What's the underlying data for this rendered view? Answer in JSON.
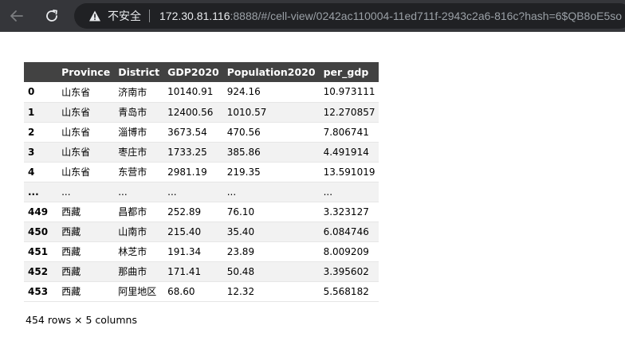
{
  "browser": {
    "security_label": "不安全",
    "url_host": "172.30.81.116",
    "url_rest": ":8888/#/cell-view/0242ac110004-11ed711f-2943c2a6-816c?hash=6$QB8oE5so"
  },
  "table": {
    "columns": [
      "",
      "Province",
      "District",
      "GDP2020",
      "Population2020",
      "per_gdp"
    ],
    "rows": [
      {
        "index": "0",
        "cells": [
          "山东省",
          "济南市",
          "10140.91",
          "924.16",
          "10.973111"
        ]
      },
      {
        "index": "1",
        "cells": [
          "山东省",
          "青岛市",
          "12400.56",
          "1010.57",
          "12.270857"
        ]
      },
      {
        "index": "2",
        "cells": [
          "山东省",
          "淄博市",
          "3673.54",
          "470.56",
          "7.806741"
        ]
      },
      {
        "index": "3",
        "cells": [
          "山东省",
          "枣庄市",
          "1733.25",
          "385.86",
          "4.491914"
        ]
      },
      {
        "index": "4",
        "cells": [
          "山东省",
          "东营市",
          "2981.19",
          "219.35",
          "13.591019"
        ]
      },
      {
        "index": "...",
        "cells": [
          "...",
          "...",
          "...",
          "...",
          "..."
        ]
      },
      {
        "index": "449",
        "cells": [
          "西藏",
          "昌都市",
          "252.89",
          "76.10",
          "3.323127"
        ]
      },
      {
        "index": "450",
        "cells": [
          "西藏",
          "山南市",
          "215.40",
          "35.40",
          "6.084746"
        ]
      },
      {
        "index": "451",
        "cells": [
          "西藏",
          "林芝市",
          "191.34",
          "23.89",
          "8.009209"
        ]
      },
      {
        "index": "452",
        "cells": [
          "西藏",
          "那曲市",
          "171.41",
          "50.48",
          "3.395602"
        ]
      },
      {
        "index": "453",
        "cells": [
          "西藏",
          "阿里地区",
          "68.60",
          "12.32",
          "5.568182"
        ]
      }
    ]
  },
  "footer": {
    "summary": "454 rows × 5 columns"
  }
}
